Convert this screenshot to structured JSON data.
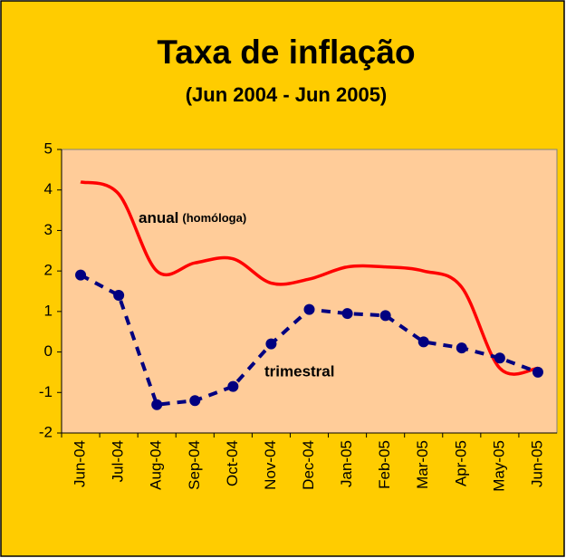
{
  "chart_data": {
    "type": "line",
    "title": "Taxa de inflação",
    "subtitle": "(Jun 2004 - Jun 2005)",
    "categories": [
      "Jun-04",
      "Jul-04",
      "Aug-04",
      "Sep-04",
      "Oct-04",
      "Nov-04",
      "Dec-04",
      "Jan-05",
      "Feb-05",
      "Mar-05",
      "Apr-05",
      "May-05",
      "Jun-05"
    ],
    "series": [
      {
        "name": "anual",
        "color": "#FF0000",
        "smooth": true,
        "dashed": false,
        "markers": false,
        "values": [
          4.2,
          3.9,
          2.0,
          2.2,
          2.3,
          1.7,
          1.8,
          2.1,
          2.1,
          2.0,
          1.6,
          -0.4,
          -0.4
        ]
      },
      {
        "name": "trimestral",
        "color": "#000080",
        "smooth": false,
        "dashed": true,
        "markers": true,
        "values": [
          1.9,
          1.4,
          -1.3,
          -1.2,
          -0.85,
          0.2,
          1.05,
          0.95,
          0.9,
          0.25,
          0.1,
          -0.15,
          -0.5
        ]
      }
    ],
    "annotations": [
      "(homóloga)"
    ],
    "ylim": [
      -2,
      5
    ],
    "yticks": [
      -2,
      -1,
      0,
      1,
      2,
      3,
      4,
      5
    ]
  }
}
